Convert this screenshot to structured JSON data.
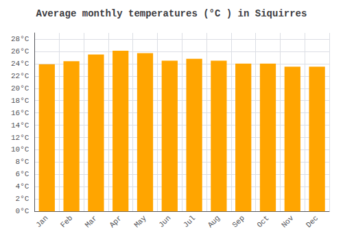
{
  "chart_data": {
    "type": "bar",
    "title": "Average monthly temperatures (°C ) in Siquirres",
    "categories": [
      "Jan",
      "Feb",
      "Mar",
      "Apr",
      "May",
      "Jun",
      "Jul",
      "Aug",
      "Sep",
      "Oct",
      "Nov",
      "Dec"
    ],
    "values": [
      23.9,
      24.4,
      25.5,
      26.1,
      25.7,
      24.5,
      24.8,
      24.5,
      24.0,
      24.0,
      23.5,
      23.5
    ],
    "color": "#FFA500",
    "ylim": [
      0,
      29
    ],
    "yticks": [
      {
        "value": 0,
        "label": "0°C"
      },
      {
        "value": 2,
        "label": "2°C"
      },
      {
        "value": 4,
        "label": "4°C"
      },
      {
        "value": 6,
        "label": "6°C"
      },
      {
        "value": 8,
        "label": "8°C"
      },
      {
        "value": 10,
        "label": "10°C"
      },
      {
        "value": 12,
        "label": "12°C"
      },
      {
        "value": 14,
        "label": "14°C"
      },
      {
        "value": 16,
        "label": "16°C"
      },
      {
        "value": 18,
        "label": "18°C"
      },
      {
        "value": 20,
        "label": "20°C"
      },
      {
        "value": 22,
        "label": "22°C"
      },
      {
        "value": 24,
        "label": "24°C"
      },
      {
        "value": 26,
        "label": "26°C"
      },
      {
        "value": 28,
        "label": "28°C"
      }
    ],
    "grid": true
  }
}
